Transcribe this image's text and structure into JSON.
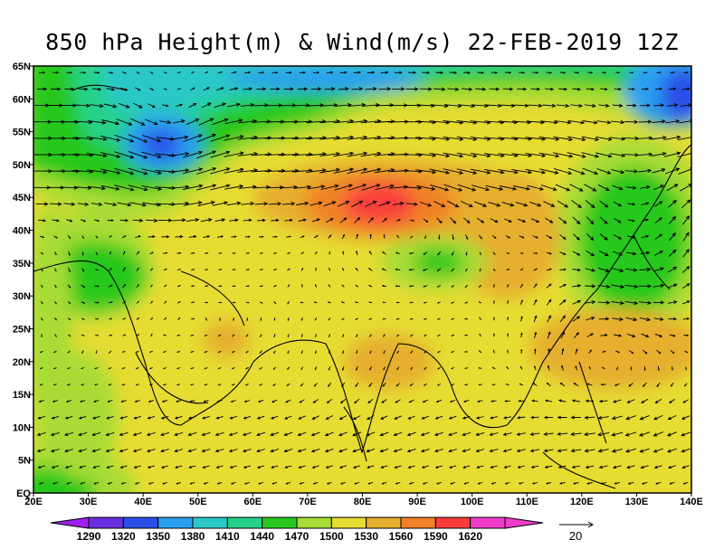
{
  "title": "850 hPa Height(m) & Wind(m/s) 22-FEB-2019 12Z",
  "map": {
    "lon_range": [
      20,
      140
    ],
    "lat_range": [
      0,
      65
    ],
    "lon_ticks": [
      "20E",
      "30E",
      "40E",
      "50E",
      "60E",
      "70E",
      "80E",
      "90E",
      "100E",
      "110E",
      "120E",
      "130E",
      "140E"
    ],
    "lat_ticks": [
      "EQ",
      "5N",
      "10N",
      "15N",
      "20N",
      "25N",
      "30N",
      "35N",
      "40N",
      "45N",
      "50N",
      "55N",
      "60N",
      "65N"
    ]
  },
  "colorbar": {
    "levels": [
      "1290",
      "1320",
      "1350",
      "1380",
      "1410",
      "1440",
      "1470",
      "1500",
      "1530",
      "1560",
      "1590",
      "1620"
    ],
    "colors": [
      "#a020f0",
      "#6a2fe0",
      "#2c4fe8",
      "#2a9ef0",
      "#2cc8c8",
      "#26d28a",
      "#28c81e",
      "#a8dc36",
      "#e6dc32",
      "#e6af2d",
      "#f08228",
      "#fa3c3c",
      "#f03cc8"
    ]
  },
  "reference_vector": {
    "label": "20"
  }
}
